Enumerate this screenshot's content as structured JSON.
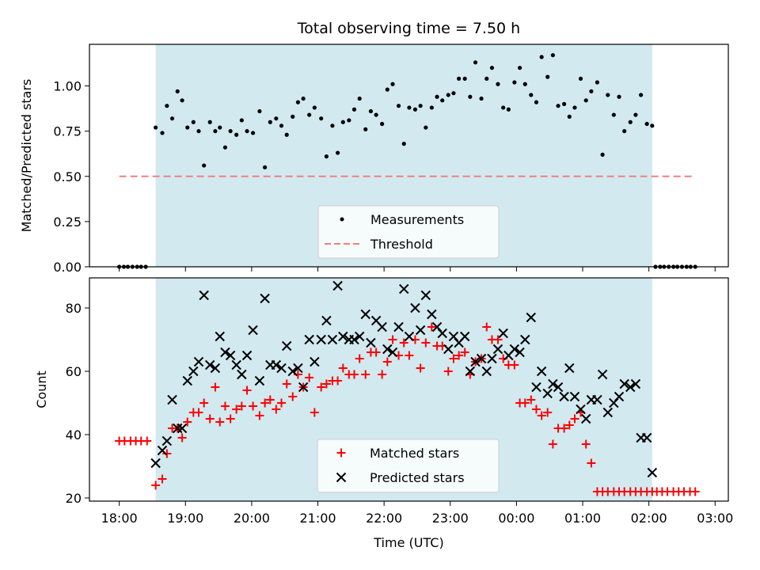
{
  "chart_data": [
    {
      "type": "scatter",
      "title": "Total observing time = 7.50 h",
      "ylabel": "Matched/Predicted stars",
      "xlabel": "",
      "xlim": [
        -0.45,
        9.2
      ],
      "ylim": [
        0.0,
        1.23
      ],
      "x_ticks": [
        0,
        1,
        2,
        3,
        4,
        5,
        6,
        7,
        8,
        9
      ],
      "y_ticks": [
        0.0,
        0.25,
        0.5,
        0.75,
        1.0
      ],
      "y_tick_labels": [
        "0.00",
        "0.25",
        "0.50",
        "0.75",
        "1.00"
      ],
      "shaded_region": [
        0.55,
        8.05
      ],
      "shade_color": "#d2e9f0",
      "legend": {
        "location": "lower center",
        "entries": [
          "Measurements",
          "Threshold"
        ]
      },
      "series": [
        {
          "name": "Measurements",
          "marker": "dot",
          "color": "#000000",
          "x": [
            0.0,
            0.07,
            0.13,
            0.2,
            0.27,
            0.33,
            0.4,
            0.55,
            0.65,
            0.72,
            0.8,
            0.88,
            0.95,
            1.03,
            1.12,
            1.2,
            1.28,
            1.37,
            1.45,
            1.52,
            1.6,
            1.68,
            1.77,
            1.85,
            1.93,
            2.02,
            2.12,
            2.2,
            2.28,
            2.37,
            2.45,
            2.53,
            2.62,
            2.7,
            2.78,
            2.87,
            2.95,
            3.05,
            3.13,
            3.22,
            3.3,
            3.38,
            3.47,
            3.55,
            3.63,
            3.72,
            3.8,
            3.88,
            3.97,
            4.05,
            4.13,
            4.22,
            4.3,
            4.38,
            4.47,
            4.55,
            4.63,
            4.72,
            4.8,
            4.88,
            4.97,
            5.05,
            5.13,
            5.22,
            5.3,
            5.38,
            5.47,
            5.55,
            5.63,
            5.72,
            5.8,
            5.88,
            5.97,
            6.05,
            6.13,
            6.22,
            6.3,
            6.38,
            6.47,
            6.55,
            6.63,
            6.72,
            6.8,
            6.88,
            6.97,
            7.05,
            7.13,
            7.22,
            7.3,
            7.38,
            7.47,
            7.55,
            7.63,
            7.72,
            7.8,
            7.88,
            7.97,
            8.05,
            8.1,
            8.17,
            8.23,
            8.3,
            8.37,
            8.43,
            8.5,
            8.57,
            8.63,
            8.7
          ],
          "y": [
            0,
            0,
            0,
            0,
            0,
            0,
            0,
            0.77,
            0.74,
            0.89,
            0.82,
            0.97,
            0.92,
            0.77,
            0.8,
            0.75,
            0.56,
            0.8,
            0.75,
            0.77,
            0.66,
            0.75,
            0.73,
            0.81,
            0.75,
            0.74,
            0.86,
            0.55,
            0.8,
            0.82,
            0.78,
            0.73,
            0.83,
            0.91,
            0.93,
            0.84,
            0.88,
            0.82,
            0.61,
            0.78,
            0.63,
            0.8,
            0.81,
            0.87,
            0.93,
            0.76,
            0.86,
            0.84,
            0.79,
            0.98,
            1.01,
            0.89,
            0.68,
            0.88,
            0.87,
            0.89,
            0.77,
            0.88,
            0.94,
            0.92,
            0.95,
            0.96,
            1.04,
            1.04,
            0.94,
            1.13,
            0.93,
            1.04,
            1.1,
            1.01,
            0.88,
            0.87,
            1.02,
            1.1,
            1.01,
            0.95,
            0.91,
            1.16,
            1.05,
            1.17,
            0.89,
            0.9,
            0.83,
            0.88,
            1.04,
            0.92,
            0.97,
            1.02,
            0.62,
            0.95,
            0.84,
            0.94,
            0.75,
            0.8,
            0.84,
            0.95,
            0.79,
            0.78,
            0,
            0,
            0,
            0,
            0,
            0,
            0,
            0,
            0,
            0
          ]
        },
        {
          "name": "Threshold",
          "style": "dashed",
          "color": "#f08080",
          "x": [
            0.0,
            8.7
          ],
          "y": [
            0.5,
            0.5
          ]
        }
      ]
    },
    {
      "type": "scatter",
      "title": "",
      "xlabel": "Time (UTC)",
      "ylabel": "Count",
      "xlim": [
        -0.45,
        9.2
      ],
      "ylim": [
        19,
        89.5
      ],
      "x_ticks": [
        0,
        1,
        2,
        3,
        4,
        5,
        6,
        7,
        8,
        9
      ],
      "x_tick_labels": [
        "18:00",
        "19:00",
        "20:00",
        "21:00",
        "22:00",
        "23:00",
        "00:00",
        "01:00",
        "02:00",
        "03:00"
      ],
      "y_ticks": [
        20,
        40,
        60,
        80
      ],
      "y_tick_labels": [
        "20",
        "40",
        "60",
        "80"
      ],
      "shaded_region": [
        0.55,
        8.05
      ],
      "shade_color": "#d2e9f0",
      "legend": {
        "location": "lower center",
        "entries": [
          "Matched stars",
          "Predicted stars"
        ]
      },
      "series": [
        {
          "name": "Matched stars",
          "marker": "plus",
          "color": "#ff0000",
          "x": [
            0.0,
            0.08,
            0.17,
            0.25,
            0.33,
            0.42,
            0.55,
            0.65,
            0.72,
            0.8,
            0.88,
            0.95,
            1.03,
            1.12,
            1.2,
            1.28,
            1.37,
            1.45,
            1.52,
            1.6,
            1.68,
            1.77,
            1.85,
            1.93,
            2.02,
            2.12,
            2.2,
            2.28,
            2.37,
            2.45,
            2.53,
            2.62,
            2.7,
            2.78,
            2.87,
            2.95,
            3.05,
            3.13,
            3.22,
            3.3,
            3.38,
            3.47,
            3.55,
            3.63,
            3.72,
            3.8,
            3.88,
            3.97,
            4.05,
            4.13,
            4.22,
            4.3,
            4.38,
            4.47,
            4.55,
            4.63,
            4.72,
            4.8,
            4.88,
            4.97,
            5.05,
            5.13,
            5.22,
            5.3,
            5.38,
            5.47,
            5.55,
            5.63,
            5.72,
            5.8,
            5.88,
            5.97,
            6.05,
            6.13,
            6.22,
            6.3,
            6.38,
            6.47,
            6.55,
            6.63,
            6.72,
            6.8,
            6.88,
            6.97,
            7.05,
            7.13,
            7.22,
            7.3,
            7.38,
            7.47,
            7.55,
            7.63,
            7.72,
            7.8,
            7.88,
            7.97,
            8.05,
            8.12,
            8.2,
            8.28,
            8.37,
            8.45,
            8.53,
            8.62,
            8.7
          ],
          "y": [
            38,
            38,
            38,
            38,
            38,
            38,
            24,
            26,
            34,
            42,
            42,
            39,
            44,
            47,
            47,
            50,
            45,
            55,
            44,
            49,
            45,
            48,
            49,
            54,
            49,
            46,
            50,
            51,
            48,
            50,
            56,
            52,
            59,
            55,
            58,
            47,
            55,
            56,
            57,
            57,
            61,
            59,
            59,
            64,
            59,
            66,
            66,
            59,
            63,
            70,
            65,
            69,
            65,
            70,
            61,
            69,
            74,
            68,
            68,
            60,
            64,
            65,
            66,
            59,
            63,
            64,
            74,
            70,
            70,
            64,
            62,
            62,
            50,
            50,
            51,
            48,
            46,
            47,
            37,
            42,
            42,
            43,
            45,
            47,
            37,
            31,
            22,
            22,
            22,
            22,
            22,
            22,
            22,
            22,
            22,
            22,
            22,
            22,
            22,
            22,
            22,
            22,
            22,
            22,
            22
          ],
          "x_trim": 84
        },
        {
          "name": "Predicted stars",
          "marker": "x",
          "color": "#000000",
          "x": [
            0.55,
            0.65,
            0.72,
            0.8,
            0.88,
            0.95,
            1.03,
            1.12,
            1.2,
            1.28,
            1.37,
            1.45,
            1.52,
            1.6,
            1.68,
            1.77,
            1.85,
            1.93,
            2.02,
            2.12,
            2.2,
            2.28,
            2.37,
            2.45,
            2.53,
            2.62,
            2.7,
            2.78,
            2.87,
            2.95,
            3.05,
            3.13,
            3.22,
            3.3,
            3.38,
            3.47,
            3.55,
            3.63,
            3.72,
            3.8,
            3.88,
            3.97,
            4.05,
            4.13,
            4.22,
            4.3,
            4.38,
            4.47,
            4.55,
            4.63,
            4.72,
            4.8,
            4.88,
            4.97,
            5.05,
            5.13,
            5.22,
            5.3,
            5.38,
            5.47,
            5.55,
            5.63,
            5.72,
            5.8,
            5.88,
            5.97,
            6.05,
            6.13,
            6.22,
            6.3,
            6.38,
            6.47,
            6.55,
            6.63,
            6.72,
            6.8,
            6.88,
            6.97,
            7.05,
            7.13,
            7.22,
            7.3,
            7.38,
            7.47,
            7.55,
            7.63,
            7.72,
            7.8,
            7.88,
            7.97,
            8.05
          ],
          "y": [
            31,
            35,
            38,
            51,
            42,
            42,
            57,
            60,
            63,
            84,
            62,
            61,
            71,
            66,
            65,
            62,
            59,
            65,
            73,
            57,
            83,
            62,
            62,
            61,
            68,
            60,
            61,
            55,
            70,
            63,
            70,
            76,
            70,
            87,
            71,
            70,
            70,
            71,
            78,
            69,
            76,
            74,
            67,
            66,
            74,
            86,
            71,
            80,
            73,
            84,
            78,
            74,
            72,
            67,
            71,
            69,
            71,
            60,
            63,
            64,
            60,
            64,
            67,
            72,
            65,
            67,
            66,
            70,
            77,
            55,
            60,
            53,
            56,
            55,
            52,
            61,
            52,
            48,
            45,
            51,
            51,
            59,
            47,
            50,
            52,
            56,
            55,
            56,
            39,
            39,
            28
          ]
        }
      ]
    }
  ]
}
